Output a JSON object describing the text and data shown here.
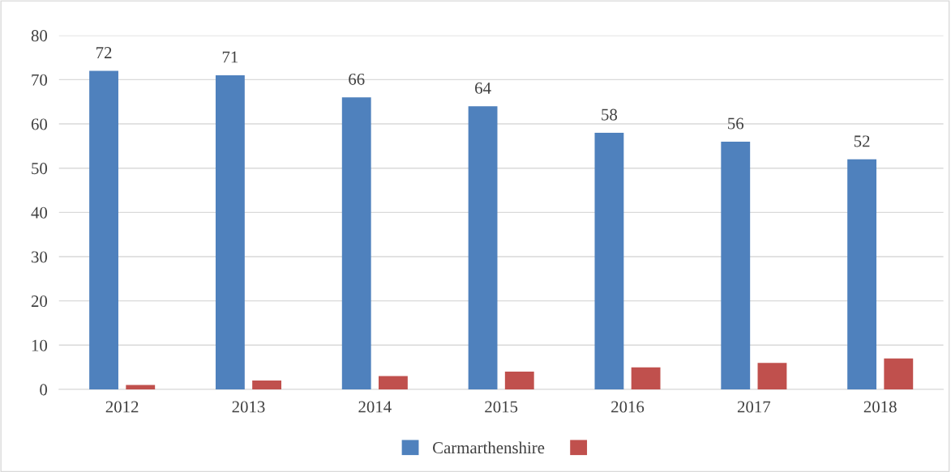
{
  "chart_data": {
    "type": "bar",
    "categories": [
      "2012",
      "2013",
      "2014",
      "2015",
      "2016",
      "2017",
      "2018"
    ],
    "series": [
      {
        "name": "Carmarthenshire",
        "color": "#4f81bd",
        "values": [
          72,
          71,
          66,
          64,
          58,
          56,
          52
        ],
        "data_labels": true
      },
      {
        "color": "#c0504d",
        "values": [
          1,
          2,
          3,
          4,
          5,
          6,
          7
        ]
      }
    ],
    "ylim": [
      0,
      80
    ],
    "yticks": [
      0,
      10,
      20,
      30,
      40,
      50,
      60,
      70,
      80
    ],
    "grid": "y",
    "legend": "bottom"
  }
}
